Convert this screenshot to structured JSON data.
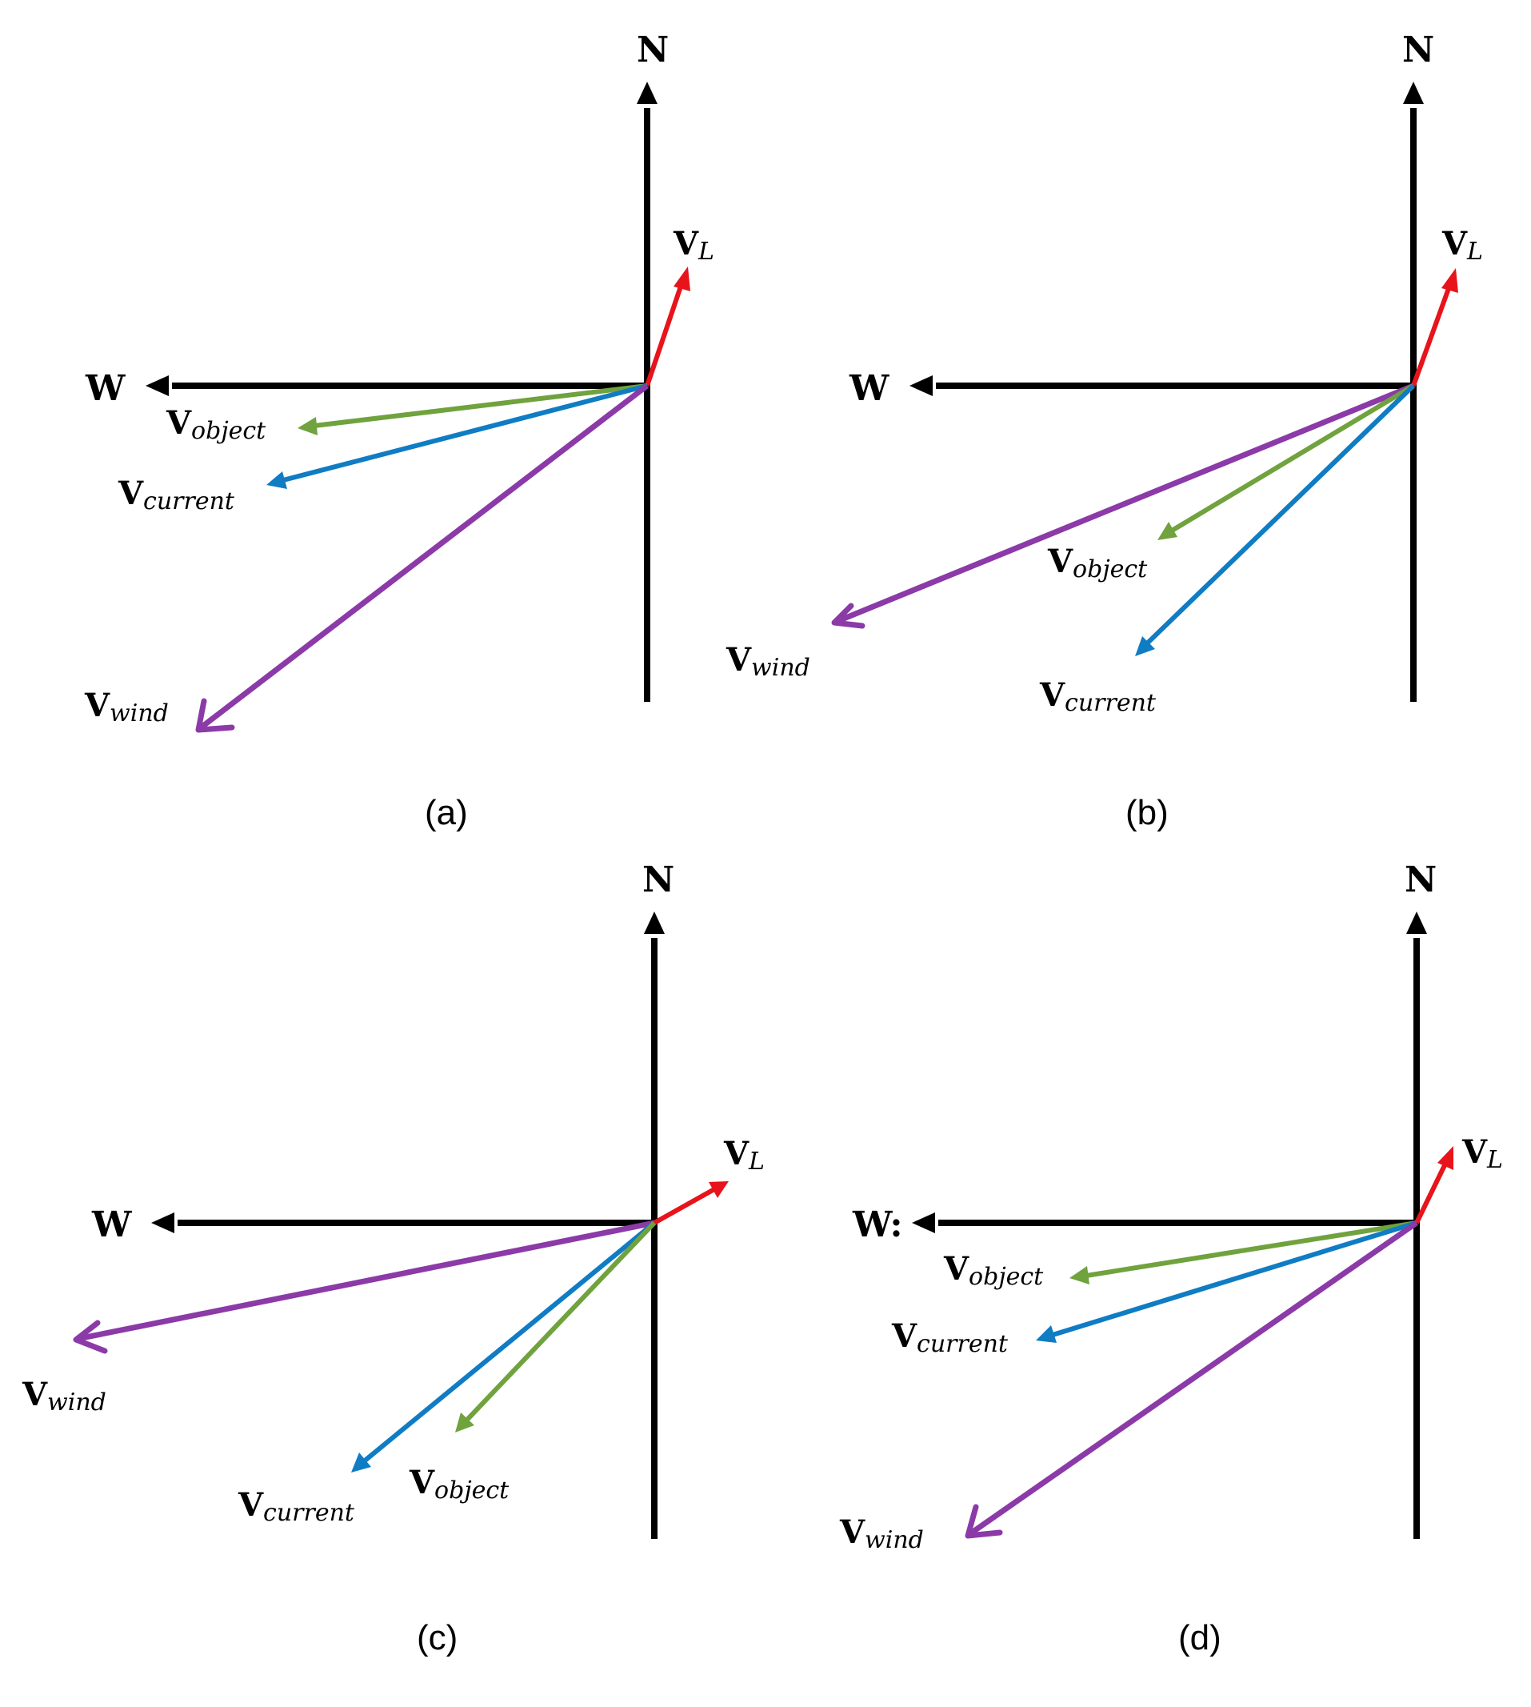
{
  "axis_labels": {
    "north": "N",
    "west": "W"
  },
  "vector_symbol": "V",
  "colors": {
    "axis": "#000000",
    "v_l": "#e8141b",
    "v_object": "#70a23e",
    "v_current": "#0f7cc4",
    "v_wind": "#8b3aa8"
  },
  "panels": [
    {
      "caption": "(a)",
      "west_label": "W",
      "vectors": [
        {
          "key": "v_l",
          "subscript": "L"
        },
        {
          "key": "v_object",
          "subscript": "object"
        },
        {
          "key": "v_current",
          "subscript": "current"
        },
        {
          "key": "v_wind",
          "subscript": "wind"
        }
      ]
    },
    {
      "caption": "(b)",
      "west_label": "W",
      "vectors": [
        {
          "key": "v_l",
          "subscript": "L"
        },
        {
          "key": "v_object",
          "subscript": "object"
        },
        {
          "key": "v_current",
          "subscript": "current"
        },
        {
          "key": "v_wind",
          "subscript": "wind"
        }
      ]
    },
    {
      "caption": "(c)",
      "west_label": "W",
      "vectors": [
        {
          "key": "v_l",
          "subscript": "L"
        },
        {
          "key": "v_object",
          "subscript": "object"
        },
        {
          "key": "v_current",
          "subscript": "current"
        },
        {
          "key": "v_wind",
          "subscript": "wind"
        }
      ]
    },
    {
      "caption": "(d)",
      "west_label": "W:",
      "vectors": [
        {
          "key": "v_l",
          "subscript": "L"
        },
        {
          "key": "v_object",
          "subscript": "object"
        },
        {
          "key": "v_current",
          "subscript": "current"
        },
        {
          "key": "v_wind",
          "subscript": "wind"
        }
      ]
    }
  ]
}
